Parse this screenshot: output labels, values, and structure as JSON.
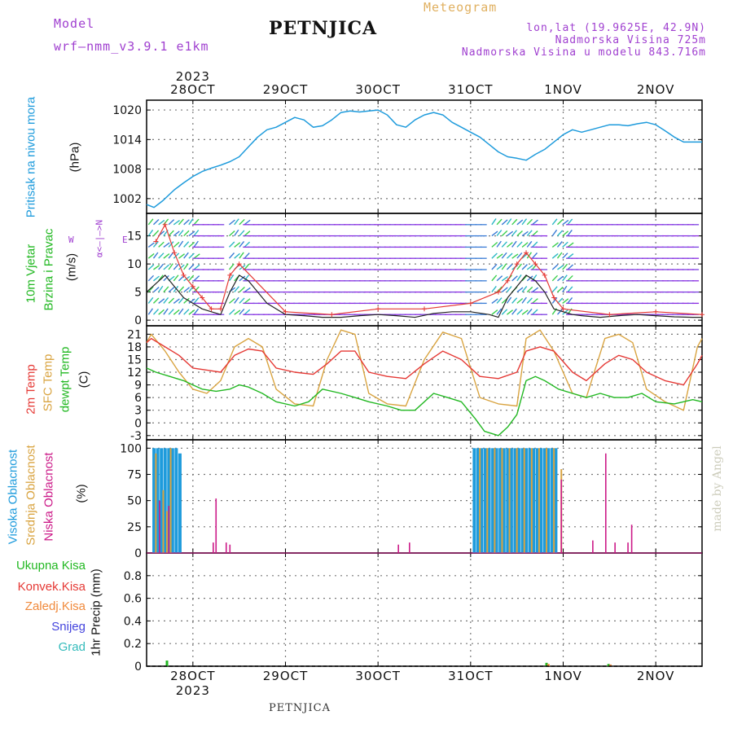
{
  "header": {
    "model_label": "Model",
    "model_name": "wrf–nmm_v3.9.1  e1km",
    "title": "PETNJICA",
    "meteogram_label": "Meteogram",
    "coords": "lon,lat (19.9625E, 42.9N)",
    "altitude": "Nadmorska Visina 725m",
    "model_altitude": "Nadmorska Visina u modelu 843.716m"
  },
  "footer": {
    "station": "PETNJICA",
    "credit": "made by Angel"
  },
  "axis_dates": {
    "labels": [
      "28OCT",
      "29OCT",
      "30OCT",
      "31OCT",
      "1NOV",
      "2NOV"
    ],
    "year": "2023"
  },
  "panels": {
    "pressure": {
      "label": "Pritisak na nivou mora",
      "unit": "(hPa)"
    },
    "wind": {
      "label1": "10m Vjetar",
      "label2": "Brzina i Pravac",
      "unit": "(m/s)",
      "compass_ns": "α<–|–>N",
      "compass_w": "W",
      "compass_e": "E"
    },
    "temp": {
      "label_2m": "2m Temp",
      "label_sfc": "SFC Temp",
      "label_dew": "dewpt Temp",
      "unit": "(C)"
    },
    "cloud": {
      "label_high": "Visoka Oblacnost",
      "label_mid": "Srednja Oblacnost",
      "label_low": "Niska Oblacnost",
      "unit": "(%)"
    },
    "precip": {
      "legend": [
        "Ukupna  Kisa",
        "Konvek.Kisa",
        "Zaledj.Kisa",
        "Snijeg",
        "Grad"
      ],
      "unit": "1hr Precip (mm)"
    }
  },
  "colors": {
    "pressure": "#1e9bdc",
    "temp2m": "#e53935",
    "sfc": "#d9a441",
    "dew": "#22b822",
    "cloud_high": "#1e9bdc",
    "cloud_mid": "#d9a441",
    "cloud_low": "#cc1a88",
    "wind_speed": "#222222",
    "wind_gust": "#e53935",
    "legend": [
      "#22b822",
      "#e53935",
      "#f08a3c",
      "#4444dd",
      "#33bbbb"
    ],
    "label_purple": "#a040d0",
    "label_orange": "#e0b060"
  },
  "chart_data": [
    {
      "type": "line",
      "title": "Pritisak na nivou mora",
      "ylabel": "(hPa)",
      "x_range": [
        -0.5,
        5.5
      ],
      "ylim": [
        999,
        1022
      ],
      "yticks": [
        1002,
        1008,
        1014,
        1020
      ],
      "series": [
        {
          "name": "Pritisak na nivou mora",
          "x": [
            -0.5,
            -0.42,
            -0.33,
            -0.2,
            -0.1,
            0,
            0.1,
            0.2,
            0.3,
            0.4,
            0.5,
            0.6,
            0.7,
            0.8,
            0.9,
            1,
            1.1,
            1.2,
            1.3,
            1.4,
            1.5,
            1.6,
            1.7,
            1.8,
            1.9,
            2,
            2.1,
            2.2,
            2.3,
            2.4,
            2.5,
            2.6,
            2.7,
            2.8,
            2.9,
            3,
            3.1,
            3.2,
            3.3,
            3.4,
            3.5,
            3.6,
            3.7,
            3.8,
            3.9,
            4,
            4.1,
            4.2,
            4.3,
            4.4,
            4.5,
            4.6,
            4.7,
            4.8,
            4.9,
            5,
            5.1,
            5.2,
            5.3,
            5.4,
            5.5
          ],
          "y": [
            1000.8,
            1000.2,
            1001.5,
            1003.8,
            1005.2,
            1006.5,
            1007.5,
            1008.2,
            1008.8,
            1009.5,
            1010.5,
            1012.5,
            1014.5,
            1016,
            1016.5,
            1017.5,
            1018.5,
            1018,
            1016.5,
            1016.8,
            1018,
            1019.5,
            1019.8,
            1019.6,
            1019.8,
            1020,
            1019,
            1017,
            1016.5,
            1018,
            1019,
            1019.5,
            1019,
            1017.5,
            1016.5,
            1015.5,
            1014.5,
            1013,
            1011.5,
            1010.5,
            1010.2,
            1009.8,
            1011,
            1012,
            1013.5,
            1015,
            1016,
            1015.5,
            1016,
            1016.5,
            1017,
            1017,
            1016.8,
            1017.2,
            1017.5,
            1017,
            1015.8,
            1014.5,
            1013.5,
            1013.5,
            1013.5
          ]
        }
      ]
    },
    {
      "type": "line",
      "title": "10m Vjetar Brzina i Pravac",
      "ylabel": "(m/s)",
      "x_range": [
        -0.5,
        5.5
      ],
      "ylim": [
        -1,
        19
      ],
      "yticks": [
        0,
        5,
        10,
        15
      ],
      "series": [
        {
          "name": "speed",
          "x": [
            -0.5,
            -0.3,
            -0.2,
            -0.1,
            0,
            0.1,
            0.2,
            0.3,
            0.4,
            0.5,
            0.6,
            0.8,
            1,
            1.2,
            1.4,
            1.6,
            1.8,
            2,
            2.2,
            2.4,
            2.6,
            2.8,
            3,
            3.2,
            3.3,
            3.4,
            3.5,
            3.6,
            3.7,
            3.8,
            3.9,
            4,
            4.1,
            4.2,
            4.4,
            4.6,
            4.8,
            5,
            5.2,
            5.4,
            5.5
          ],
          "y": [
            5,
            8,
            6,
            4,
            3,
            2,
            1.5,
            1,
            5,
            8,
            7,
            3,
            1,
            0.8,
            0.5,
            0.5,
            0.8,
            1,
            0.8,
            0.5,
            1.2,
            1.5,
            1.5,
            1,
            0.5,
            4,
            6,
            8,
            7,
            5,
            2,
            1.5,
            1,
            0.8,
            0.5,
            0.8,
            1,
            0.8,
            0.6,
            0.5,
            0.5
          ]
        },
        {
          "name": "gust",
          "x": [
            -0.4,
            -0.3,
            -0.2,
            -0.1,
            0,
            0.1,
            0.2,
            0.3,
            0.4,
            0.5,
            1,
            1.5,
            2,
            2.5,
            3,
            3.3,
            3.4,
            3.5,
            3.6,
            3.7,
            3.8,
            3.9,
            4,
            4.5,
            5,
            5.5
          ],
          "y": [
            14,
            17,
            12,
            8,
            6,
            4,
            2,
            2,
            8,
            10,
            1.5,
            1,
            2,
            2,
            3,
            5,
            7,
            10,
            12,
            10,
            8,
            4,
            2,
            1,
            1.5,
            1
          ]
        }
      ]
    },
    {
      "type": "line",
      "title": "2m Temp, SFC Temp, dewpt Temp",
      "ylabel": "(C)",
      "x_range": [
        -0.5,
        5.5
      ],
      "ylim": [
        -4,
        23
      ],
      "yticks": [
        -3,
        0,
        3,
        6,
        9,
        12,
        15,
        18,
        21
      ],
      "series": [
        {
          "name": "2m Temp",
          "x": [
            -0.5,
            -0.45,
            -0.3,
            -0.15,
            0,
            0.15,
            0.3,
            0.45,
            0.6,
            0.75,
            0.9,
            1.1,
            1.3,
            1.45,
            1.6,
            1.75,
            1.9,
            2.1,
            2.3,
            2.5,
            2.7,
            2.9,
            3.1,
            3.3,
            3.5,
            3.6,
            3.75,
            3.9,
            4.1,
            4.25,
            4.45,
            4.6,
            4.75,
            4.9,
            5.1,
            5.3,
            5.45,
            5.5
          ],
          "y": [
            19,
            20,
            18,
            16,
            13,
            12.5,
            12,
            16,
            17.5,
            17,
            13,
            12,
            11.5,
            14,
            17,
            17,
            12,
            11,
            10.5,
            14,
            17,
            15,
            11,
            10.5,
            12,
            17,
            18,
            17,
            12,
            10,
            14,
            16,
            15,
            12,
            10,
            9,
            14,
            16
          ]
        },
        {
          "name": "SFC Temp",
          "x": [
            -0.5,
            -0.45,
            -0.3,
            -0.15,
            0,
            0.15,
            0.3,
            0.45,
            0.6,
            0.75,
            0.9,
            1.1,
            1.3,
            1.45,
            1.6,
            1.75,
            1.9,
            2.1,
            2.3,
            2.5,
            2.7,
            2.9,
            3.1,
            3.3,
            3.5,
            3.6,
            3.75,
            3.9,
            4.1,
            4.25,
            4.45,
            4.6,
            4.75,
            4.9,
            5.1,
            5.3,
            5.45,
            5.5
          ],
          "y": [
            19,
            21,
            17,
            12,
            8,
            7,
            10,
            18,
            20,
            18,
            8,
            4.5,
            4,
            15,
            22,
            21,
            7,
            4.5,
            4,
            15,
            21.5,
            20,
            6,
            4.5,
            4,
            20,
            22,
            17,
            7,
            6,
            20,
            21,
            19,
            8,
            5,
            3,
            18,
            20
          ]
        },
        {
          "name": "dewpt Temp",
          "x": [
            -0.5,
            -0.4,
            -0.25,
            -0.1,
            0,
            0.1,
            0.25,
            0.4,
            0.5,
            0.6,
            0.75,
            0.9,
            1.1,
            1.25,
            1.4,
            1.6,
            1.75,
            1.9,
            2.1,
            2.25,
            2.4,
            2.6,
            2.75,
            2.9,
            3.05,
            3.15,
            3.3,
            3.4,
            3.5,
            3.6,
            3.7,
            3.8,
            3.95,
            4.1,
            4.25,
            4.4,
            4.55,
            4.7,
            4.85,
            5,
            5.2,
            5.4,
            5.5
          ],
          "y": [
            13,
            12,
            11,
            10,
            9,
            8,
            7.5,
            8,
            9,
            8.5,
            7,
            5,
            4,
            5,
            8,
            7,
            6,
            5,
            4,
            3,
            3,
            7,
            6,
            5,
            1,
            -2,
            -3,
            -1,
            2,
            10,
            11,
            10,
            8,
            7,
            6,
            7,
            6,
            6,
            7,
            5,
            4.5,
            5.5,
            5
          ]
        }
      ]
    },
    {
      "type": "bar",
      "title": "Visoka / Srednja / Niska Oblacnost",
      "ylabel": "(%)",
      "x_range": [
        -0.5,
        5.5
      ],
      "ylim": [
        0,
        108
      ],
      "yticks": [
        0,
        25,
        50,
        75,
        100
      ],
      "series": [
        {
          "name": "Visoka Oblacnost",
          "x": [
            -0.42,
            -0.38,
            -0.34,
            -0.3,
            -0.26,
            -0.22,
            -0.18,
            -0.14,
            3.04,
            3.08,
            3.12,
            3.16,
            3.2,
            3.24,
            3.28,
            3.32,
            3.36,
            3.4,
            3.44,
            3.48,
            3.52,
            3.56,
            3.6,
            3.64,
            3.68,
            3.72,
            3.76,
            3.8,
            3.84,
            3.88,
            3.92
          ],
          "y": [
            100,
            100,
            100,
            100,
            100,
            100,
            100,
            95,
            100,
            100,
            100,
            100,
            100,
            100,
            100,
            100,
            100,
            100,
            100,
            100,
            100,
            100,
            100,
            100,
            100,
            100,
            100,
            100,
            100,
            100,
            100
          ]
        },
        {
          "name": "Srednja Oblacnost",
          "x": [
            -0.4,
            -0.32,
            -0.28,
            -0.24,
            3.1,
            3.18,
            3.26,
            3.34,
            3.42,
            3.5,
            3.58,
            3.66,
            3.74,
            3.82,
            3.9,
            3.98
          ],
          "y": [
            95,
            60,
            40,
            100,
            100,
            100,
            100,
            100,
            100,
            100,
            100,
            100,
            100,
            100,
            100,
            80
          ]
        },
        {
          "name": "Niska Oblacnost",
          "x": [
            -0.36,
            -0.26,
            0.22,
            0.25,
            0.36,
            0.4,
            2.22,
            2.34,
            3.98,
            4.32,
            4.46,
            4.56,
            4.7,
            4.74
          ],
          "y": [
            50,
            45,
            10,
            52,
            10,
            8,
            8,
            10,
            70,
            12,
            95,
            10,
            10,
            27
          ]
        }
      ]
    },
    {
      "type": "bar",
      "title": "1hr Precip",
      "ylabel": "1hr Precip (mm)",
      "x_range": [
        -0.5,
        5.5
      ],
      "ylim": [
        0,
        1
      ],
      "yticks": [
        0,
        0.2,
        0.4,
        0.6,
        0.8
      ],
      "series": [
        {
          "name": "Ukupna  Kisa",
          "x": [
            -0.28,
            3.82,
            4.49
          ],
          "y": [
            0.05,
            0.03,
            0.02
          ]
        },
        {
          "name": "Konvek.Kisa",
          "x": [],
          "y": []
        },
        {
          "name": "Zaledj.Kisa",
          "x": [
            3.84,
            4.51
          ],
          "y": [
            0.02,
            0.015
          ]
        },
        {
          "name": "Snijeg",
          "x": [],
          "y": []
        },
        {
          "name": "Grad",
          "x": [],
          "y": []
        }
      ]
    }
  ]
}
